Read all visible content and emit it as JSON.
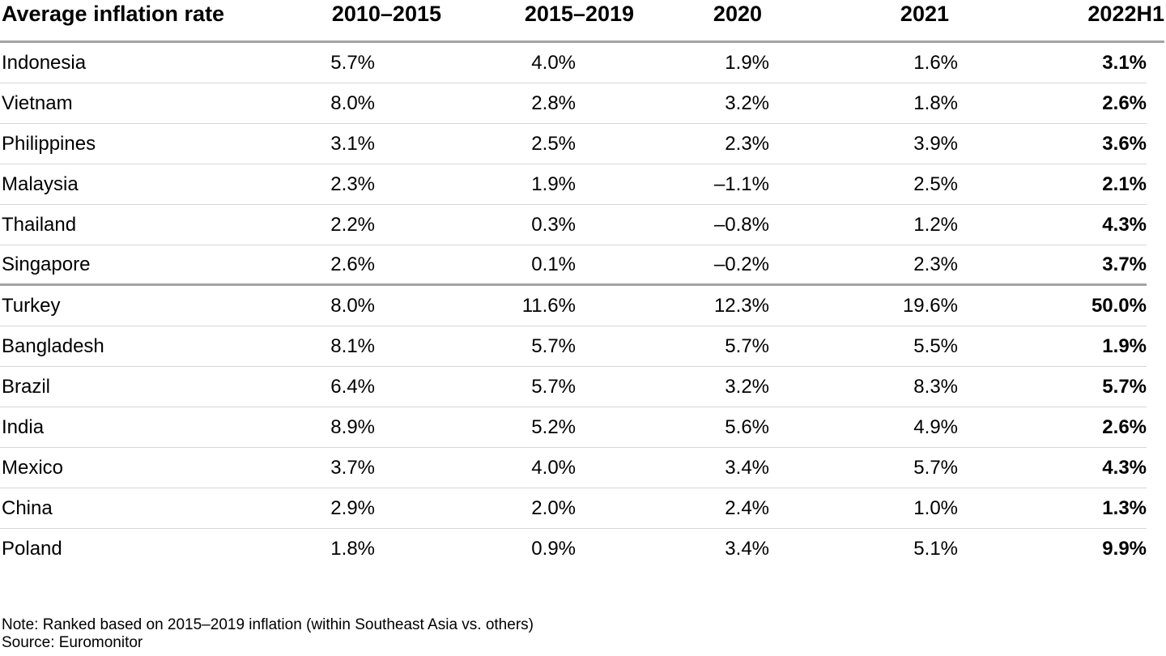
{
  "colors": {
    "background": "#ffffff",
    "text": "#000000",
    "rule_heavy": "#a3a3a3",
    "rule_light": "#d6d6d6"
  },
  "chart_data": {
    "type": "table",
    "title": "Average inflation rate",
    "columns": [
      "2010–2015",
      "2015–2019",
      "2020",
      "2021",
      "2022H1"
    ],
    "bold_column": "2022H1",
    "separator_after_row": "Singapore",
    "rows": [
      {
        "country": "Indonesia",
        "values": [
          "5.7%",
          "4.0%",
          "1.9%",
          "1.6%",
          "3.1%"
        ]
      },
      {
        "country": "Vietnam",
        "values": [
          "8.0%",
          "2.8%",
          "3.2%",
          "1.8%",
          "2.6%"
        ]
      },
      {
        "country": "Philippines",
        "values": [
          "3.1%",
          "2.5%",
          "2.3%",
          "3.9%",
          "3.6%"
        ]
      },
      {
        "country": "Malaysia",
        "values": [
          "2.3%",
          "1.9%",
          "–1.1%",
          "2.5%",
          "2.1%"
        ]
      },
      {
        "country": "Thailand",
        "values": [
          "2.2%",
          "0.3%",
          "–0.8%",
          "1.2%",
          "4.3%"
        ]
      },
      {
        "country": "Singapore",
        "values": [
          "2.6%",
          "0.1%",
          "–0.2%",
          "2.3%",
          "3.7%"
        ]
      },
      {
        "country": "Turkey",
        "values": [
          "8.0%",
          "11.6%",
          "12.3%",
          "19.6%",
          "50.0%"
        ]
      },
      {
        "country": "Bangladesh",
        "values": [
          "8.1%",
          "5.7%",
          "5.7%",
          "5.5%",
          "1.9%"
        ]
      },
      {
        "country": "Brazil",
        "values": [
          "6.4%",
          "5.7%",
          "3.2%",
          "8.3%",
          "5.7%"
        ]
      },
      {
        "country": "India",
        "values": [
          "8.9%",
          "5.2%",
          "5.6%",
          "4.9%",
          "2.6%"
        ]
      },
      {
        "country": "Mexico",
        "values": [
          "3.7%",
          "4.0%",
          "3.4%",
          "5.7%",
          "4.3%"
        ]
      },
      {
        "country": "China",
        "values": [
          "2.9%",
          "2.0%",
          "2.4%",
          "1.0%",
          "1.3%"
        ]
      },
      {
        "country": "Poland",
        "values": [
          "1.8%",
          "0.9%",
          "3.4%",
          "5.1%",
          "9.9%"
        ]
      }
    ],
    "note": "Note: Ranked based on 2015–2019 inflation (within Southeast Asia vs. others)",
    "source": "Source: Euromonitor"
  }
}
